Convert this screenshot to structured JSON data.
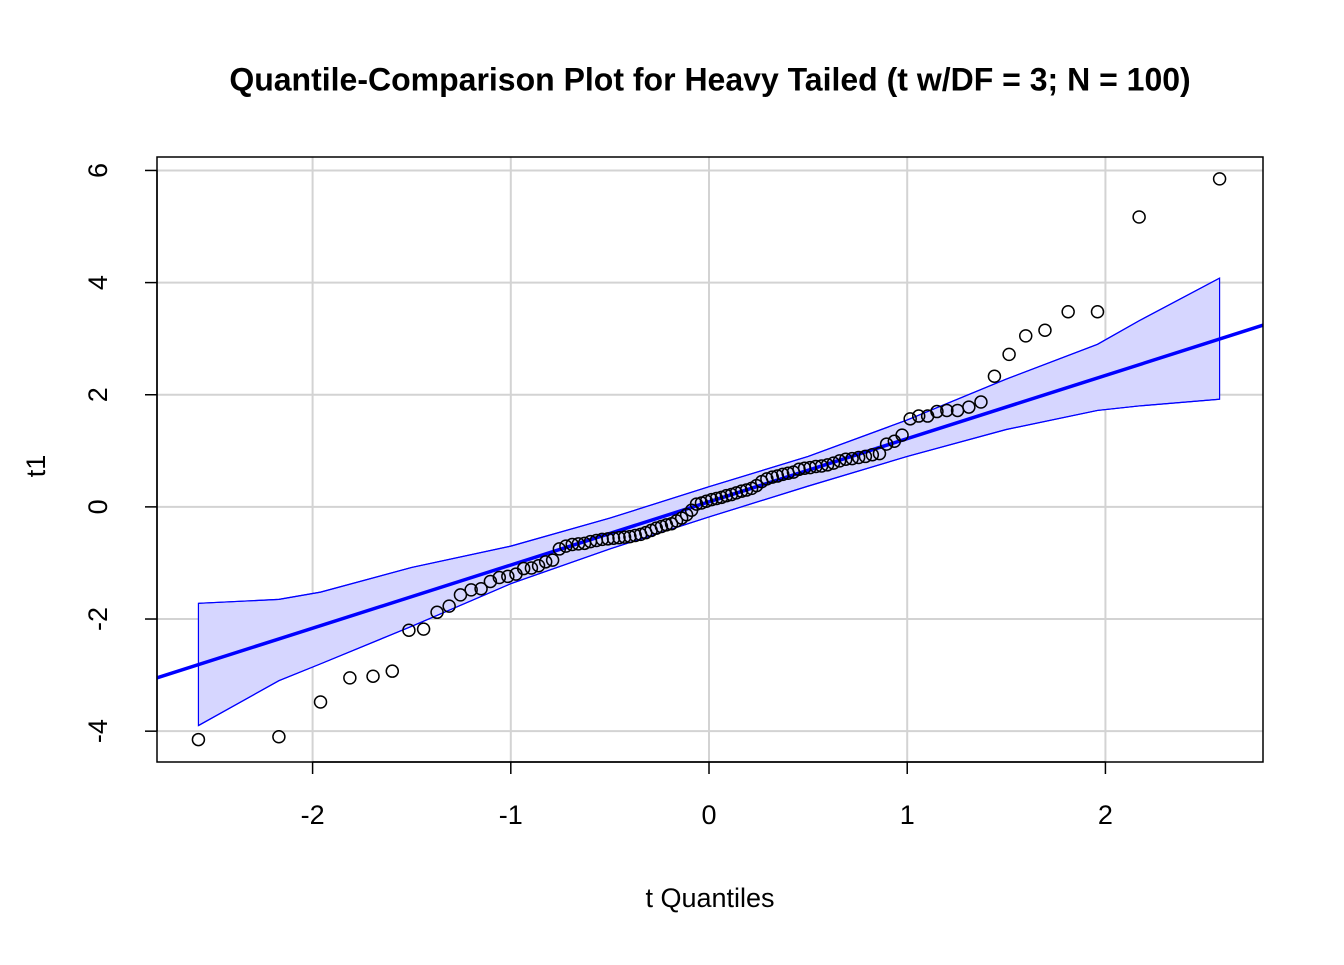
{
  "chart_data": {
    "type": "qq",
    "title": "Quantile-Comparison Plot for Heavy Tailed (t w/DF = 3; N = 100)",
    "x_label": "t Quantiles",
    "y_label": "t1",
    "xlim": [
      -2.785,
      2.795
    ],
    "ylim": [
      -4.55,
      6.24
    ],
    "xticks": [
      -2,
      -1,
      0,
      1,
      2
    ],
    "yticks": [
      -4,
      -2,
      0,
      2,
      4,
      6
    ],
    "grid": true,
    "series": [
      {
        "color": "#000000",
        "x": [
          -2.576,
          -2.17,
          -1.96,
          -1.812,
          -1.695,
          -1.598,
          -1.514,
          -1.44,
          -1.372,
          -1.311,
          -1.254,
          -1.2,
          -1.15,
          -1.103,
          -1.058,
          -1.015,
          -0.974,
          -0.935,
          -0.896,
          -0.86,
          -0.824,
          -0.789,
          -0.755,
          -0.722,
          -0.69,
          -0.659,
          -0.628,
          -0.598,
          -0.568,
          -0.539,
          -0.51,
          -0.482,
          -0.454,
          -0.426,
          -0.399,
          -0.372,
          -0.345,
          -0.319,
          -0.292,
          -0.266,
          -0.24,
          -0.215,
          -0.189,
          -0.164,
          -0.138,
          -0.113,
          -0.088,
          -0.063,
          -0.038,
          -0.013,
          0.013,
          0.038,
          0.063,
          0.088,
          0.113,
          0.138,
          0.164,
          0.189,
          0.215,
          0.24,
          0.266,
          0.292,
          0.319,
          0.345,
          0.372,
          0.399,
          0.426,
          0.454,
          0.482,
          0.51,
          0.539,
          0.568,
          0.598,
          0.628,
          0.659,
          0.69,
          0.722,
          0.755,
          0.789,
          0.824,
          0.86,
          0.896,
          0.935,
          0.974,
          1.015,
          1.058,
          1.103,
          1.15,
          1.2,
          1.254,
          1.311,
          1.372,
          1.44,
          1.514,
          1.598,
          1.695,
          1.812,
          1.96,
          2.17,
          2.576
        ],
        "values": [
          -4.15,
          -4.1,
          -3.48,
          -3.05,
          -3.02,
          -2.93,
          -2.2,
          -2.18,
          -1.88,
          -1.77,
          -1.57,
          -1.48,
          -1.46,
          -1.33,
          -1.26,
          -1.24,
          -1.2,
          -1.1,
          -1.09,
          -1.05,
          -0.98,
          -0.95,
          -0.75,
          -0.7,
          -0.67,
          -0.66,
          -0.65,
          -0.62,
          -0.6,
          -0.58,
          -0.57,
          -0.56,
          -0.55,
          -0.54,
          -0.53,
          -0.51,
          -0.49,
          -0.46,
          -0.42,
          -0.38,
          -0.35,
          -0.32,
          -0.3,
          -0.25,
          -0.2,
          -0.14,
          -0.06,
          0.05,
          0.07,
          0.1,
          0.13,
          0.15,
          0.17,
          0.2,
          0.22,
          0.25,
          0.28,
          0.3,
          0.33,
          0.38,
          0.45,
          0.5,
          0.53,
          0.55,
          0.58,
          0.6,
          0.62,
          0.67,
          0.69,
          0.7,
          0.72,
          0.73,
          0.75,
          0.78,
          0.82,
          0.85,
          0.86,
          0.88,
          0.9,
          0.93,
          0.95,
          1.12,
          1.17,
          1.28,
          1.57,
          1.62,
          1.62,
          1.7,
          1.72,
          1.72,
          1.78,
          1.87,
          2.33,
          2.72,
          3.05,
          3.15,
          3.48,
          3.48,
          5.17,
          5.85
        ]
      }
    ],
    "reference_line": {
      "intercept": 0.09,
      "slope": 1.127,
      "color": "#0000ff"
    },
    "envelope": {
      "color": "#0000ff",
      "fill": "#d6d6ff",
      "x": [
        -2.576,
        -2.17,
        -1.96,
        -1.5,
        -1,
        -0.5,
        0,
        0.5,
        1,
        1.5,
        1.96,
        2.17,
        2.576
      ],
      "upper": [
        -1.72,
        -1.65,
        -1.52,
        -1.08,
        -0.7,
        -0.2,
        0.36,
        0.9,
        1.55,
        2.28,
        2.9,
        3.32,
        4.08
      ],
      "lower": [
        -3.9,
        -3.1,
        -2.8,
        -2.13,
        -1.37,
        -0.75,
        -0.18,
        0.37,
        0.9,
        1.38,
        1.72,
        1.8,
        1.92
      ]
    }
  }
}
